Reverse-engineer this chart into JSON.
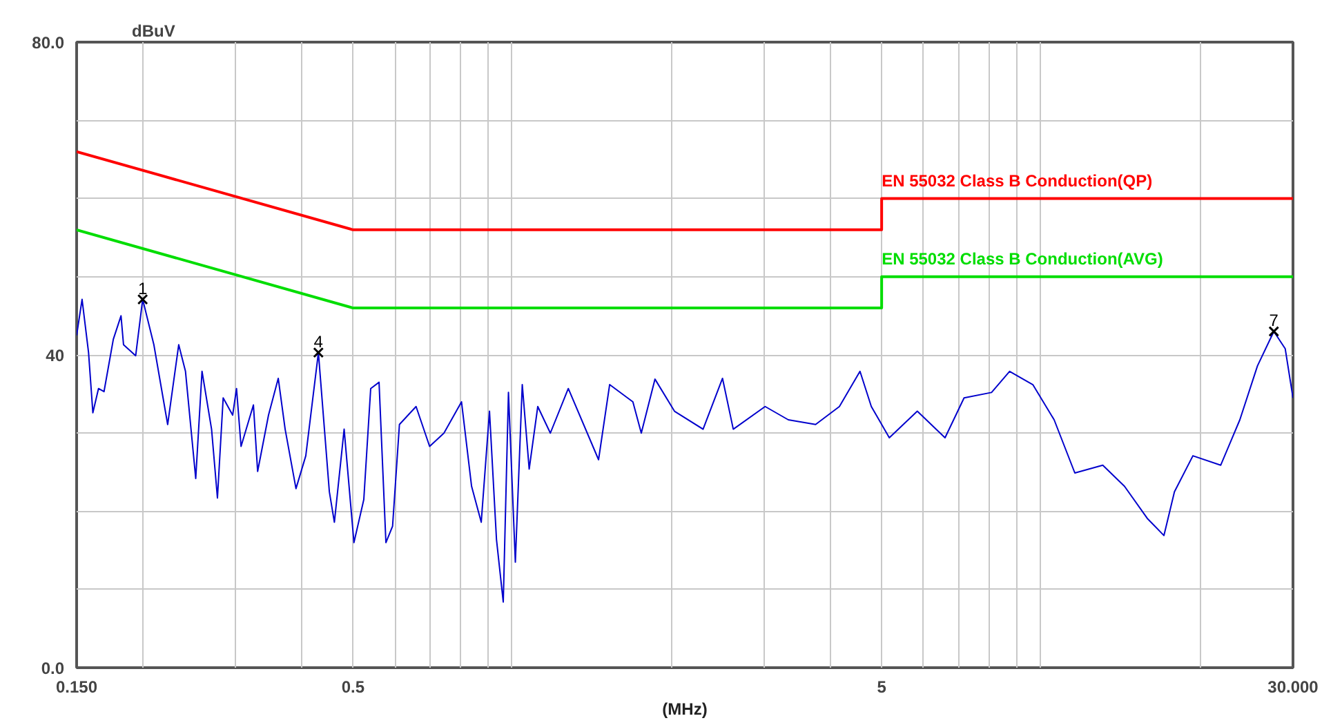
{
  "chart_data": {
    "type": "line",
    "xlabel": "(MHz)",
    "ylabel": "dBuV",
    "log": "x",
    "grid": true,
    "xlim": [
      0.15,
      30
    ],
    "ylim": [
      0,
      80
    ],
    "xticks": [
      {
        "value": 0.15,
        "label": "0.150"
      },
      {
        "value": 0.2,
        "label": null
      },
      {
        "value": 0.3,
        "label": null
      },
      {
        "value": 0.4,
        "label": null
      },
      0.5,
      {
        "value": 0.6,
        "label": null
      },
      {
        "value": 0.7,
        "label": null
      },
      {
        "value": 0.8,
        "label": null
      },
      {
        "value": 0.9,
        "label": null
      },
      {
        "value": 1,
        "label": null
      },
      {
        "value": 2,
        "label": null
      },
      {
        "value": 3,
        "label": null
      },
      {
        "value": 4,
        "label": null
      },
      5,
      {
        "value": 6,
        "label": null
      },
      {
        "value": 7,
        "label": null
      },
      {
        "value": 8,
        "label": null
      },
      {
        "value": 9,
        "label": null
      },
      {
        "value": 10,
        "label": null
      },
      {
        "value": 20,
        "label": null
      },
      {
        "value": 30,
        "label": "30.000"
      }
    ],
    "yticks": [
      {
        "value": 0,
        "label": "0.0"
      },
      {
        "value": 10,
        "label": null
      },
      {
        "value": 20,
        "label": null
      },
      {
        "value": 30,
        "label": null
      },
      40,
      {
        "value": 50,
        "label": null
      },
      {
        "value": 60,
        "label": null
      },
      {
        "value": 70,
        "label": null
      },
      {
        "value": 80,
        "label": "80.0"
      }
    ],
    "series": [
      {
        "color": "#0000cc",
        "x": [
          0.15,
          0.1536,
          0.158,
          0.161,
          0.165,
          0.169,
          0.176,
          0.182,
          0.184,
          0.194,
          0.2,
          0.21,
          0.223,
          0.234,
          0.241,
          0.252,
          0.259,
          0.27,
          0.277,
          0.284,
          0.296,
          0.301,
          0.307,
          0.324,
          0.33,
          0.346,
          0.361,
          0.372,
          0.39,
          0.407,
          0.43,
          0.451,
          0.461,
          0.481,
          0.502,
          0.524,
          0.54,
          0.56,
          0.577,
          0.594,
          0.612,
          0.658,
          0.698,
          0.743,
          0.802,
          0.838,
          0.874,
          0.906,
          0.934,
          0.962,
          0.984,
          1.014,
          1.045,
          1.077,
          1.118,
          1.181,
          1.277,
          1.457,
          1.529,
          1.692,
          1.755,
          1.863,
          2.028,
          2.297,
          2.5,
          2.62,
          3.01,
          3.33,
          3.75,
          4.16,
          4.55,
          4.78,
          5.17,
          5.84,
          6.59,
          7.16,
          8.07,
          8.73,
          9.66,
          10.6,
          11.6,
          13.1,
          14.4,
          15.9,
          17.1,
          17.9,
          19.4,
          21.9,
          23.8,
          25.7,
          27.6,
          29.0,
          30
        ],
        "values": [
          42.5,
          47.1,
          40.3,
          32.6,
          35.7,
          35.3,
          42.0,
          45.0,
          41.3,
          39.9,
          47.1,
          41.3,
          31.1,
          41.3,
          37.9,
          24.2,
          37.9,
          30.5,
          21.7,
          34.5,
          32.3,
          35.7,
          28.3,
          33.6,
          25.1,
          32.3,
          37.0,
          30.5,
          22.9,
          27.1,
          40.3,
          22.5,
          18.6,
          30.5,
          16.0,
          21.5,
          35.7,
          36.5,
          16.0,
          18.1,
          31.1,
          33.4,
          28.3,
          30.0,
          34.0,
          23.2,
          18.6,
          32.8,
          16.4,
          8.4,
          35.2,
          13.5,
          36.2,
          25.4,
          33.4,
          30.0,
          35.7,
          26.6,
          36.2,
          34.0,
          30.0,
          36.9,
          32.8,
          30.5,
          37.0,
          30.5,
          33.4,
          31.7,
          31.1,
          33.4,
          37.9,
          33.4,
          29.4,
          32.8,
          29.4,
          34.5,
          35.2,
          37.9,
          36.2,
          31.7,
          24.9,
          25.9,
          23.2,
          19.1,
          16.9,
          22.5,
          27.1,
          25.9,
          31.7,
          38.6,
          43.0,
          40.8,
          34.5
        ]
      },
      {
        "name": "EN 55032 Class B Conduction(QP)",
        "color": "#ff0000",
        "x": [
          0.15,
          0.5,
          5,
          5,
          30
        ],
        "values": [
          66,
          56,
          56,
          60,
          60
        ]
      },
      {
        "name": "EN 55032 Class B Conduction(AVG)",
        "color": "#00dd00",
        "x": [
          0.15,
          0.5,
          5,
          5,
          30
        ],
        "values": [
          56,
          46,
          46,
          50,
          50
        ]
      },
      {
        "type": "scatter",
        "marker": "cross",
        "color": "#000000",
        "x": [
          0.2,
          0.43,
          27.6
        ],
        "values": [
          47.1,
          40.3,
          43.0
        ]
      }
    ],
    "annotations": [
      {
        "text": "1",
        "x": 0.2,
        "y": 47.1
      },
      {
        "text": "4",
        "x": 0.43,
        "y": 40.3
      },
      {
        "text": "7",
        "x": 27.6,
        "y": 43.0
      }
    ]
  }
}
